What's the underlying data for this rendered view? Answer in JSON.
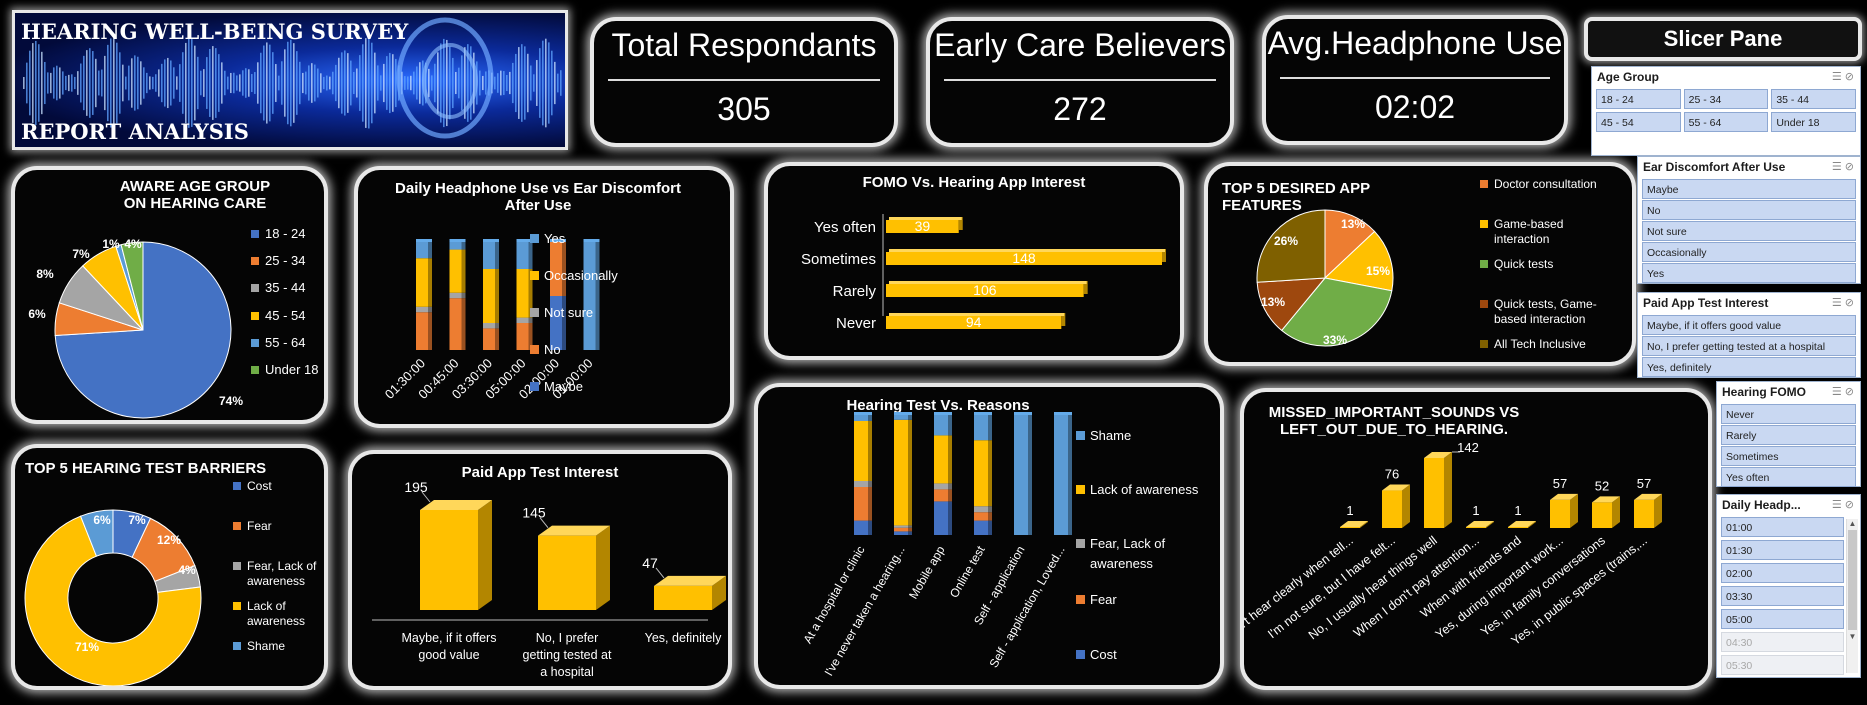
{
  "banner": {
    "line1": "HEARING WELL-BEING SURVEY",
    "line2": "REPORT ANALYSIS"
  },
  "kpis": [
    {
      "title": "Total Respondants",
      "value": "305"
    },
    {
      "title": "Early Care Believers",
      "value": "272"
    },
    {
      "title": "Avg.Headphone Use",
      "value": "02:02"
    }
  ],
  "slicer_pane_title": "Slicer Pane",
  "slicers": {
    "age": {
      "title": "Age Group",
      "items": [
        "18 - 24",
        "25 - 34",
        "35 - 44",
        "45 - 54",
        "55 - 64",
        "Under 18"
      ]
    },
    "discomfort": {
      "title": "Ear Discomfort After Use",
      "items": [
        "Maybe",
        "No",
        "Not sure",
        "Occasionally",
        "Yes"
      ]
    },
    "paid": {
      "title": "Paid App Test Interest",
      "items": [
        "Maybe, if it offers good value",
        "No, I prefer getting tested at a hospital",
        "Yes, definitely"
      ]
    },
    "fomo": {
      "title": "Hearing FOMO",
      "items": [
        "Never",
        "Rarely",
        "Sometimes",
        "Yes often"
      ]
    },
    "daily": {
      "title": "Daily Headp...",
      "items": [
        "01:00",
        "01:30",
        "02:00",
        "03:30",
        "05:00",
        "04:30",
        "05:30"
      ],
      "dimmed": [
        "04:30",
        "05:30"
      ]
    }
  },
  "chart_data": [
    {
      "id": "age_pie",
      "type": "pie",
      "title": "AWARE AGE GROUP ON HEARING CARE",
      "categories": [
        "18 - 24",
        "25 - 34",
        "35 - 44",
        "45 - 54",
        "55 - 64",
        "Under 18"
      ],
      "values": [
        74,
        6,
        8,
        7,
        1,
        4
      ],
      "labels": [
        "74%",
        "6%",
        "8%",
        "7%",
        "1%",
        "4%"
      ],
      "colors": [
        "#4472c4",
        "#ed7d31",
        "#a5a5a5",
        "#ffc000",
        "#5b9bd5",
        "#70ad47"
      ],
      "legend": "right"
    },
    {
      "id": "headphone_discomfort",
      "type": "bar",
      "title": "Daily Headphone Use vs Ear Discomfort After Use",
      "categories": [
        "01:30:00",
        "00:45:00",
        "03:30:00",
        "05:00:00",
        "02:00:00",
        "01:00:00"
      ],
      "series": [
        {
          "name": "Maybe",
          "color": "#4472c4",
          "values": [
            0,
            0,
            0,
            0,
            50,
            0
          ]
        },
        {
          "name": "No",
          "color": "#ed7d31",
          "values": [
            35,
            48,
            20,
            25,
            50,
            0
          ]
        },
        {
          "name": "Not sure",
          "color": "#a5a5a5",
          "values": [
            5,
            5,
            5,
            5,
            0,
            0
          ]
        },
        {
          "name": "Occasionally",
          "color": "#ffc000",
          "values": [
            45,
            40,
            50,
            45,
            0,
            0
          ]
        },
        {
          "name": "Yes",
          "color": "#5b9bd5",
          "values": [
            15,
            7,
            25,
            25,
            0,
            100
          ]
        }
      ],
      "stacked": "percent",
      "legend": "right"
    },
    {
      "id": "fomo_bar",
      "type": "bar",
      "orientation": "horizontal",
      "title": "FOMO Vs. Hearing App Interest",
      "categories": [
        "Yes often",
        "Sometimes",
        "Rarely",
        "Never"
      ],
      "values": [
        39,
        148,
        106,
        94
      ],
      "color": "#ffc000"
    },
    {
      "id": "features_pie",
      "type": "pie",
      "title": "TOP 5 DESIRED APP FEATURES",
      "categories": [
        "Doctor consultation",
        "Game-based interaction",
        "Quick tests",
        "Quick tests, Game-based interaction",
        "All Tech Inclusive"
      ],
      "values": [
        13,
        15,
        33,
        13,
        26
      ],
      "labels": [
        "13%",
        "15%",
        "33%",
        "13%",
        "26%"
      ],
      "colors": [
        "#ed7d31",
        "#ffc000",
        "#70ad47",
        "#9e480e",
        "#7f6000"
      ],
      "legend": "right"
    },
    {
      "id": "reasons_bar",
      "type": "bar",
      "title": "Hearing Test Vs. Reasons",
      "categories": [
        "At a hospital or clinic",
        "I've never taken a hearing...",
        "Mobile app",
        "Online test",
        "Self - application",
        "Self - application, Loved..."
      ],
      "series": [
        {
          "name": "Cost",
          "color": "#4472c4",
          "values": [
            12,
            3,
            28,
            12,
            0,
            0
          ]
        },
        {
          "name": "Fear",
          "color": "#ed7d31",
          "values": [
            28,
            3,
            10,
            7,
            0,
            0
          ]
        },
        {
          "name": "Fear, Lack of awareness",
          "color": "#a5a5a5",
          "values": [
            5,
            2,
            5,
            5,
            0,
            0
          ]
        },
        {
          "name": "Lack of awareness",
          "color": "#ffc000",
          "values": [
            50,
            88,
            40,
            55,
            0,
            0
          ]
        },
        {
          "name": "Shame",
          "color": "#5b9bd5",
          "values": [
            5,
            4,
            17,
            21,
            100,
            100
          ]
        }
      ],
      "stacked": "percent",
      "legend": "right"
    },
    {
      "id": "barriers_donut",
      "type": "pie",
      "variant": "donut",
      "title": "TOP 5 HEARING TEST BARRIERS",
      "categories": [
        "Cost",
        "Fear",
        "Fear, Lack of awareness",
        "Lack of awareness",
        "Shame"
      ],
      "values": [
        7,
        12,
        4,
        71,
        6
      ],
      "labels": [
        "7%",
        "12%",
        "4%",
        "71%",
        "6%"
      ],
      "colors": [
        "#4472c4",
        "#ed7d31",
        "#a5a5a5",
        "#ffc000",
        "#5b9bd5"
      ],
      "legend": "right"
    },
    {
      "id": "paid_bar",
      "type": "bar",
      "title": "Paid App Test Interest",
      "categories": [
        "Maybe, if it offers good value",
        "No, I prefer getting tested at a hospital",
        "Yes, definitely"
      ],
      "values": [
        195,
        145,
        47
      ],
      "color": "#ffc000"
    },
    {
      "id": "missed_bar",
      "type": "bar",
      "title": "MISSED_IMPORTANT_SOUNDS VS LEFT_OUT_DUE_TO_HEARING.",
      "categories": [
        "I can't hear clearly when tell...",
        "I'm not sure, but I have felt...",
        "No, I usually hear things well",
        "When I don't pay attention...",
        "When with friends and",
        "Yes, during important work...",
        "Yes, in family conversations",
        "Yes, in public spaces (trains,..."
      ],
      "values": [
        1,
        76,
        142,
        1,
        1,
        57,
        52,
        57
      ],
      "color": "#ffc000"
    }
  ]
}
